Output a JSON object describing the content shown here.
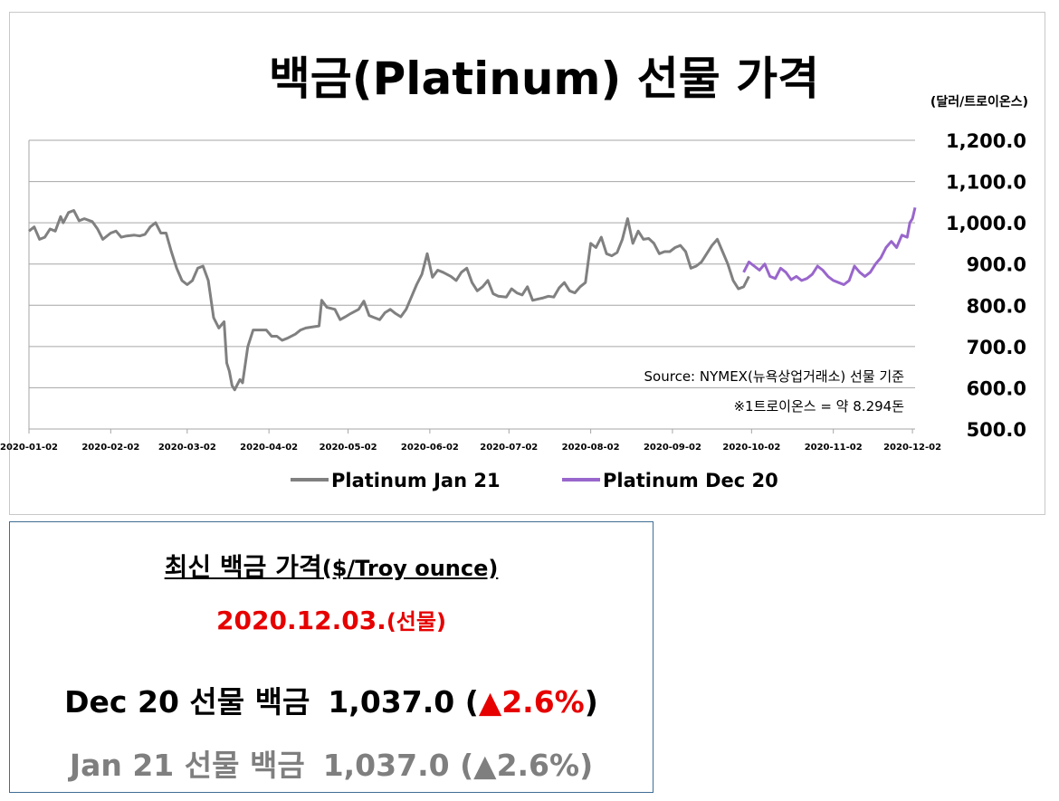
{
  "chart_data": {
    "type": "line",
    "title": "백금(Platinum) 선물 가격",
    "unit": "(달러/트로이온스)",
    "ylim": [
      500,
      1200
    ],
    "y_ticks": [
      "1,200.0",
      "1,100.0",
      "1,000.0",
      "900.0",
      "800.0",
      "700.0",
      "600.0",
      "500.0"
    ],
    "y_tick_values": [
      1200,
      1100,
      1000,
      900,
      800,
      700,
      600,
      500
    ],
    "x_ticks": [
      "2020-01-02",
      "2020-02-02",
      "2020-03-02",
      "2020-04-02",
      "2020-05-02",
      "2020-06-02",
      "2020-07-02",
      "2020-08-02",
      "2020-09-02",
      "2020-10-02",
      "2020-11-02",
      "2020-12-02"
    ],
    "x_range": [
      "2020-01-02",
      "2020-12-03"
    ],
    "grid": true,
    "legend_position": "bottom",
    "annotations": [
      "Source: NYMEX(뉴욕상업거래소) 선물 기준",
      "※1트로이온스 = 약 8.294돈"
    ],
    "series": [
      {
        "name": "Platinum Jan 21",
        "color": "#808080",
        "points": [
          [
            "2020-01-02",
            980
          ],
          [
            "2020-01-04",
            990
          ],
          [
            "2020-01-06",
            960
          ],
          [
            "2020-01-08",
            965
          ],
          [
            "2020-01-10",
            985
          ],
          [
            "2020-01-12",
            980
          ],
          [
            "2020-01-14",
            1015
          ],
          [
            "2020-01-15",
            1000
          ],
          [
            "2020-01-17",
            1025
          ],
          [
            "2020-01-19",
            1030
          ],
          [
            "2020-01-21",
            1005
          ],
          [
            "2020-01-23",
            1010
          ],
          [
            "2020-01-26",
            1003
          ],
          [
            "2020-01-28",
            985
          ],
          [
            "2020-01-30",
            960
          ],
          [
            "2020-02-02",
            975
          ],
          [
            "2020-02-04",
            980
          ],
          [
            "2020-02-06",
            965
          ],
          [
            "2020-02-08",
            968
          ],
          [
            "2020-02-11",
            970
          ],
          [
            "2020-02-13",
            968
          ],
          [
            "2020-02-15",
            972
          ],
          [
            "2020-02-17",
            990
          ],
          [
            "2020-02-19",
            1000
          ],
          [
            "2020-02-21",
            975
          ],
          [
            "2020-02-23",
            975
          ],
          [
            "2020-02-25",
            930
          ],
          [
            "2020-02-27",
            890
          ],
          [
            "2020-02-29",
            860
          ],
          [
            "2020-03-02",
            850
          ],
          [
            "2020-03-04",
            860
          ],
          [
            "2020-03-06",
            890
          ],
          [
            "2020-03-08",
            895
          ],
          [
            "2020-03-10",
            860
          ],
          [
            "2020-03-12",
            770
          ],
          [
            "2020-03-14",
            745
          ],
          [
            "2020-03-16",
            760
          ],
          [
            "2020-03-17",
            660
          ],
          [
            "2020-03-18",
            640
          ],
          [
            "2020-03-19",
            605
          ],
          [
            "2020-03-20",
            595
          ],
          [
            "2020-03-22",
            620
          ],
          [
            "2020-03-23",
            612
          ],
          [
            "2020-03-25",
            700
          ],
          [
            "2020-03-27",
            740
          ],
          [
            "2020-03-29",
            740
          ],
          [
            "2020-04-01",
            740
          ],
          [
            "2020-04-03",
            725
          ],
          [
            "2020-04-05",
            725
          ],
          [
            "2020-04-07",
            715
          ],
          [
            "2020-04-09",
            720
          ],
          [
            "2020-04-12",
            730
          ],
          [
            "2020-04-14",
            740
          ],
          [
            "2020-04-16",
            745
          ],
          [
            "2020-04-19",
            748
          ],
          [
            "2020-04-21",
            750
          ],
          [
            "2020-04-22",
            812
          ],
          [
            "2020-04-24",
            795
          ],
          [
            "2020-04-27",
            790
          ],
          [
            "2020-04-29",
            765
          ],
          [
            "2020-05-01",
            772
          ],
          [
            "2020-05-03",
            780
          ],
          [
            "2020-05-06",
            790
          ],
          [
            "2020-05-08",
            810
          ],
          [
            "2020-05-10",
            775
          ],
          [
            "2020-05-12",
            770
          ],
          [
            "2020-05-14",
            765
          ],
          [
            "2020-05-16",
            782
          ],
          [
            "2020-05-18",
            790
          ],
          [
            "2020-05-20",
            780
          ],
          [
            "2020-05-22",
            772
          ],
          [
            "2020-05-24",
            790
          ],
          [
            "2020-05-26",
            820
          ],
          [
            "2020-05-28",
            850
          ],
          [
            "2020-05-30",
            875
          ],
          [
            "2020-06-01",
            925
          ],
          [
            "2020-06-03",
            868
          ],
          [
            "2020-06-05",
            885
          ],
          [
            "2020-06-07",
            880
          ],
          [
            "2020-06-10",
            870
          ],
          [
            "2020-06-12",
            860
          ],
          [
            "2020-06-14",
            880
          ],
          [
            "2020-06-16",
            890
          ],
          [
            "2020-06-18",
            855
          ],
          [
            "2020-06-20",
            835
          ],
          [
            "2020-06-22",
            845
          ],
          [
            "2020-06-24",
            860
          ],
          [
            "2020-06-26",
            828
          ],
          [
            "2020-06-28",
            822
          ],
          [
            "2020-07-01",
            820
          ],
          [
            "2020-07-03",
            840
          ],
          [
            "2020-07-05",
            830
          ],
          [
            "2020-07-07",
            825
          ],
          [
            "2020-07-09",
            845
          ],
          [
            "2020-07-11",
            812
          ],
          [
            "2020-07-13",
            815
          ],
          [
            "2020-07-15",
            818
          ],
          [
            "2020-07-17",
            822
          ],
          [
            "2020-07-19",
            820
          ],
          [
            "2020-07-21",
            842
          ],
          [
            "2020-07-23",
            855
          ],
          [
            "2020-07-25",
            835
          ],
          [
            "2020-07-27",
            830
          ],
          [
            "2020-07-29",
            845
          ],
          [
            "2020-07-31",
            855
          ],
          [
            "2020-08-02",
            950
          ],
          [
            "2020-08-04",
            940
          ],
          [
            "2020-08-06",
            965
          ],
          [
            "2020-08-08",
            925
          ],
          [
            "2020-08-10",
            920
          ],
          [
            "2020-08-12",
            928
          ],
          [
            "2020-08-14",
            960
          ],
          [
            "2020-08-16",
            1010
          ],
          [
            "2020-08-18",
            950
          ],
          [
            "2020-08-20",
            980
          ],
          [
            "2020-08-22",
            960
          ],
          [
            "2020-08-24",
            962
          ],
          [
            "2020-08-26",
            950
          ],
          [
            "2020-08-28",
            925
          ],
          [
            "2020-08-30",
            930
          ],
          [
            "2020-09-01",
            930
          ],
          [
            "2020-09-03",
            940
          ],
          [
            "2020-09-05",
            945
          ],
          [
            "2020-09-07",
            930
          ],
          [
            "2020-09-09",
            890
          ],
          [
            "2020-09-11",
            895
          ],
          [
            "2020-09-13",
            905
          ],
          [
            "2020-09-15",
            925
          ],
          [
            "2020-09-17",
            945
          ],
          [
            "2020-09-19",
            960
          ],
          [
            "2020-09-21",
            930
          ],
          [
            "2020-09-23",
            900
          ],
          [
            "2020-09-25",
            860
          ],
          [
            "2020-09-27",
            840
          ],
          [
            "2020-09-29",
            845
          ],
          [
            "2020-10-01",
            870
          ]
        ]
      },
      {
        "name": "Platinum Dec 20",
        "color": "#9966cc",
        "points": [
          [
            "2020-09-29",
            880
          ],
          [
            "2020-10-01",
            905
          ],
          [
            "2020-10-03",
            895
          ],
          [
            "2020-10-05",
            885
          ],
          [
            "2020-10-07",
            900
          ],
          [
            "2020-10-09",
            870
          ],
          [
            "2020-10-11",
            865
          ],
          [
            "2020-10-13",
            890
          ],
          [
            "2020-10-15",
            880
          ],
          [
            "2020-10-17",
            862
          ],
          [
            "2020-10-19",
            870
          ],
          [
            "2020-10-21",
            860
          ],
          [
            "2020-10-23",
            865
          ],
          [
            "2020-10-25",
            875
          ],
          [
            "2020-10-27",
            895
          ],
          [
            "2020-10-29",
            885
          ],
          [
            "2020-10-31",
            870
          ],
          [
            "2020-11-02",
            860
          ],
          [
            "2020-11-04",
            855
          ],
          [
            "2020-11-06",
            850
          ],
          [
            "2020-11-08",
            860
          ],
          [
            "2020-11-10",
            895
          ],
          [
            "2020-11-12",
            880
          ],
          [
            "2020-11-14",
            870
          ],
          [
            "2020-11-16",
            880
          ],
          [
            "2020-11-18",
            900
          ],
          [
            "2020-11-20",
            915
          ],
          [
            "2020-11-22",
            940
          ],
          [
            "2020-11-24",
            955
          ],
          [
            "2020-11-26",
            940
          ],
          [
            "2020-11-28",
            970
          ],
          [
            "2020-11-30",
            965
          ],
          [
            "2020-12-01",
            1000
          ],
          [
            "2020-12-02",
            1010
          ],
          [
            "2020-12-03",
            1037
          ]
        ]
      }
    ]
  },
  "info": {
    "title": "최신 백금 가격",
    "title_unit": "($/Troy ounce)",
    "date": "2020.12.03.",
    "date_suffix": "(선물)",
    "dec": {
      "label": "Dec 20 선물 백금",
      "value": "1,037.0",
      "paren_open": "(",
      "triangle": "▲",
      "change": "2.6%",
      "paren_close": ")"
    },
    "jan": {
      "label": "Jan 21 선물 백금",
      "value": "1,037.0",
      "paren_open": "(",
      "triangle": "▲",
      "change": "2.6%",
      "paren_close": ")"
    }
  }
}
